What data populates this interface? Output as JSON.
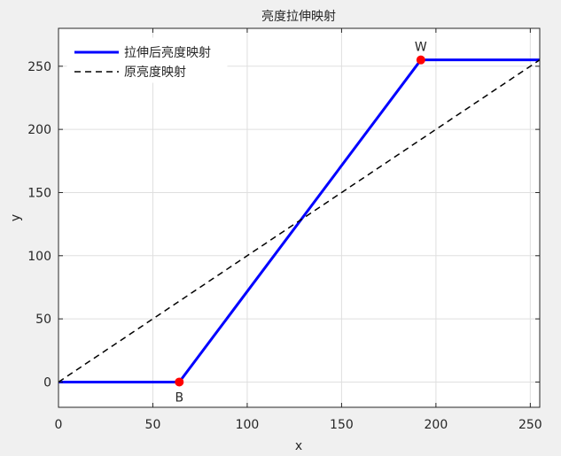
{
  "window": {
    "background": "#f0f0f0"
  },
  "chart_data": {
    "type": "line",
    "title": "亮度拉伸映射",
    "xlabel": "x",
    "ylabel": "y",
    "xlim": [
      0,
      255
    ],
    "ylim": [
      -20,
      280
    ],
    "xticks": [
      0,
      50,
      100,
      150,
      200,
      250
    ],
    "yticks": [
      0,
      50,
      100,
      150,
      200,
      250
    ],
    "grid": true,
    "legend": {
      "location": "top-left"
    },
    "series": [
      {
        "name": "拉伸后亮度映射",
        "x": [
          0,
          64,
          192,
          255
        ],
        "y": [
          0,
          0,
          255,
          255
        ],
        "color": "#0000ff",
        "style": "solid"
      },
      {
        "name": "原亮度映射",
        "x": [
          0,
          255
        ],
        "y": [
          0,
          255
        ],
        "color": "#000000",
        "style": "dashed"
      }
    ],
    "points": [
      {
        "label": "B",
        "x": 64,
        "y": 0,
        "color": "#ff0000",
        "label_position": "below"
      },
      {
        "label": "W",
        "x": 192,
        "y": 255,
        "color": "#ff0000",
        "label_position": "above"
      }
    ]
  }
}
